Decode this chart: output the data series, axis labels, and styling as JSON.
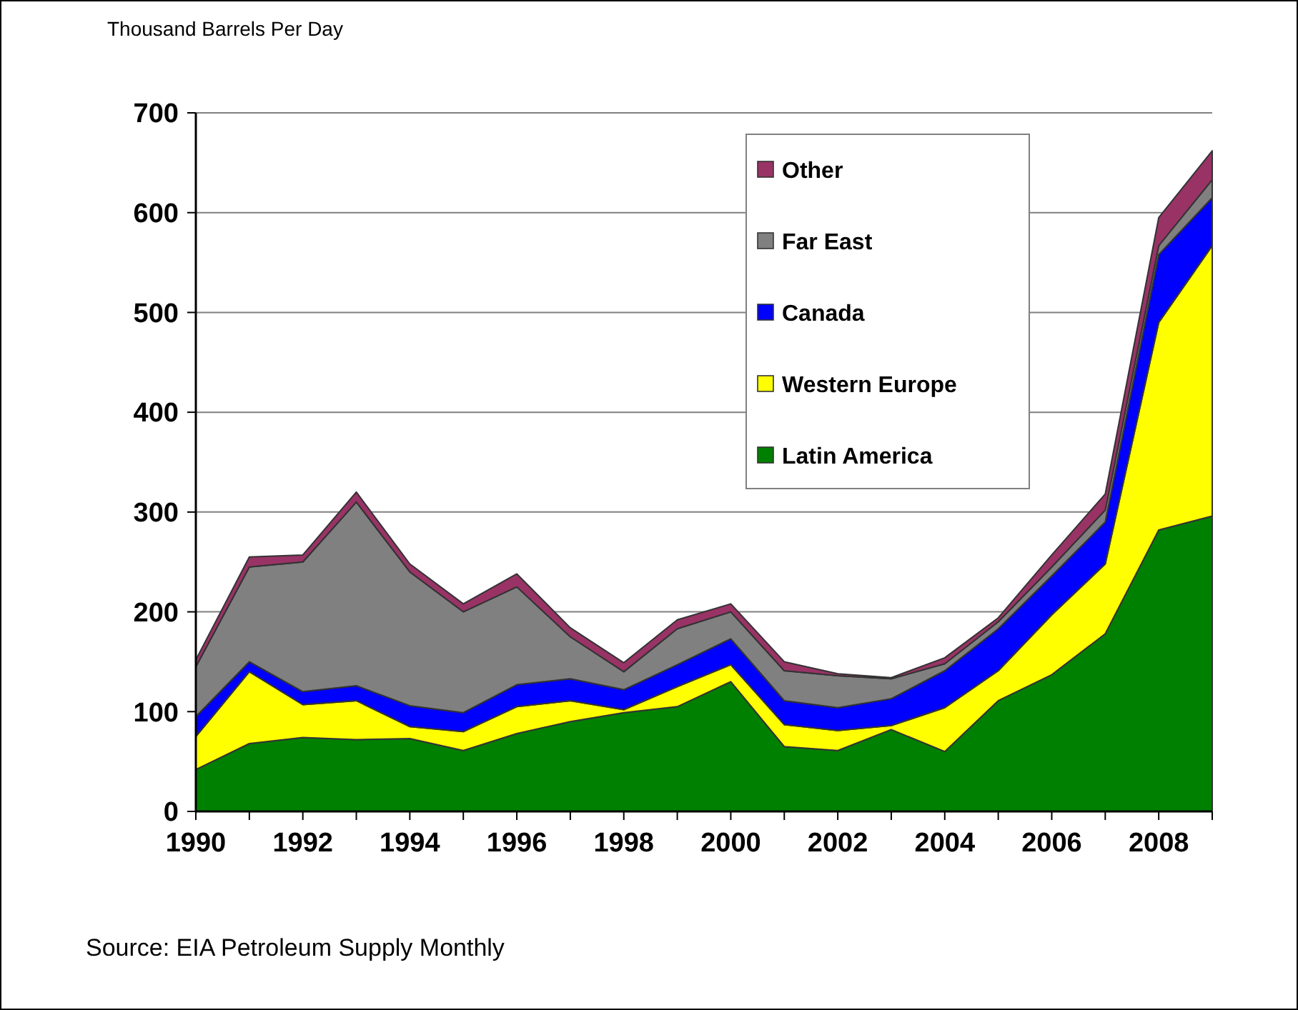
{
  "chart_data": {
    "type": "area",
    "stacked": true,
    "ylabel": "Thousand Barrels Per Day",
    "annotations": [
      "Source: EIA Petroleum Supply Monthly"
    ],
    "x": [
      1990,
      1991,
      1992,
      1993,
      1994,
      1995,
      1996,
      1997,
      1998,
      1999,
      2000,
      2001,
      2002,
      2003,
      2004,
      2005,
      2006,
      2007,
      2008,
      2009
    ],
    "series": [
      {
        "name": "Latin America",
        "color": "#008000",
        "values": [
          42,
          68,
          74,
          72,
          73,
          61,
          78,
          90,
          99,
          105,
          130,
          65,
          61,
          82,
          60,
          111,
          137,
          178,
          282,
          296
        ]
      },
      {
        "name": "Western Europe",
        "color": "#ffff00",
        "values": [
          33,
          72,
          33,
          39,
          12,
          19,
          27,
          21,
          3,
          20,
          17,
          22,
          20,
          4,
          44,
          30,
          60,
          70,
          208,
          271
        ]
      },
      {
        "name": "Canada",
        "color": "#0000ff",
        "values": [
          20,
          10,
          13,
          15,
          21,
          19,
          22,
          22,
          20,
          22,
          26,
          24,
          23,
          27,
          37,
          42,
          39,
          42,
          68,
          48
        ]
      },
      {
        "name": "Far East",
        "color": "#808080",
        "values": [
          50,
          95,
          130,
          184,
          134,
          101,
          98,
          42,
          18,
          36,
          27,
          30,
          32,
          20,
          7,
          7,
          9,
          12,
          9,
          18
        ]
      },
      {
        "name": "Other",
        "color": "#993366",
        "values": [
          7,
          10,
          7,
          10,
          8,
          8,
          13,
          9,
          9,
          9,
          8,
          9,
          2,
          1,
          6,
          4,
          12,
          16,
          28,
          29
        ]
      }
    ],
    "xlim": [
      1990,
      2009
    ],
    "xticks": [
      1990,
      {
        "value": 1991,
        "label": null
      },
      1992,
      {
        "value": 1993,
        "label": null
      },
      1994,
      {
        "value": 1995,
        "label": null
      },
      1996,
      {
        "value": 1997,
        "label": null
      },
      1998,
      {
        "value": 1999,
        "label": null
      },
      2000,
      {
        "value": 2001,
        "label": null
      },
      2002,
      {
        "value": 2003,
        "label": null
      },
      2004,
      {
        "value": 2005,
        "label": null
      },
      2006,
      {
        "value": 2007,
        "label": null
      },
      2008,
      {
        "value": 2009,
        "label": null
      }
    ],
    "ylim": [
      0,
      700
    ],
    "yticks": [
      0,
      100,
      200,
      300,
      400,
      500,
      600,
      700
    ],
    "grid": "y",
    "legend": "top right"
  }
}
